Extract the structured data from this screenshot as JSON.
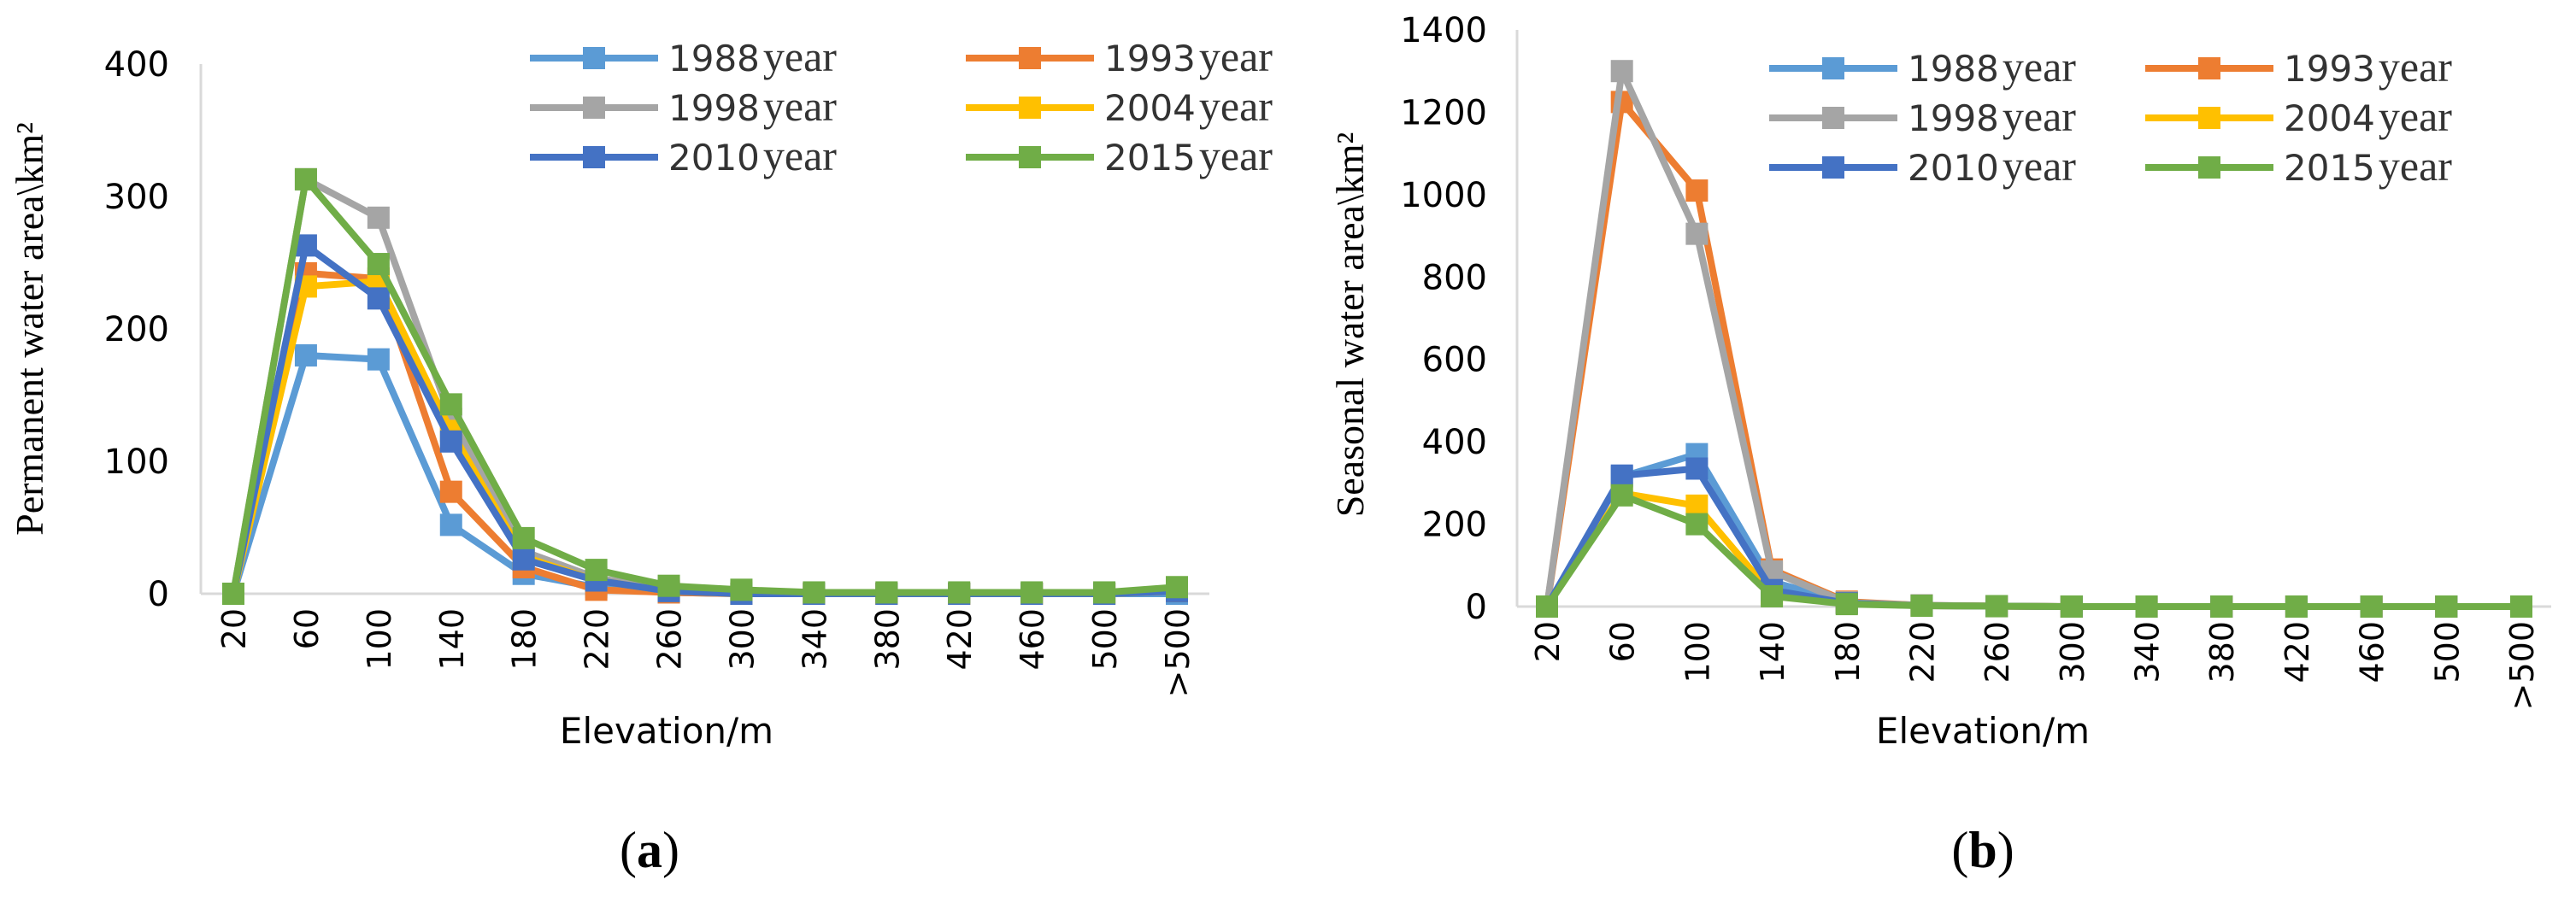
{
  "figure": {
    "panels": [
      {
        "label_open": "(",
        "label_letter": "a",
        "label_close": ")"
      },
      {
        "label_open": "(",
        "label_letter": "b",
        "label_close": ")"
      }
    ]
  },
  "chart_data": [
    {
      "type": "line",
      "panel": "a",
      "title": "",
      "xlabel": "Elevation/m",
      "ylabel": "Permanent water area\\km²",
      "categories": [
        "20",
        "60",
        "100",
        "140",
        "180",
        "220",
        "260",
        "300",
        "340",
        "380",
        "420",
        "460",
        "500",
        ">500"
      ],
      "ylim": [
        0,
        400
      ],
      "yticks": [
        0,
        100,
        200,
        300,
        400
      ],
      "grid": false,
      "legend_position": "top-right",
      "series": [
        {
          "name": "1988",
          "suffix": "year",
          "color": "#5B9BD5",
          "values": [
            0,
            180,
            177,
            52,
            15,
            5,
            1,
            0,
            0,
            0,
            0,
            0,
            0,
            0
          ]
        },
        {
          "name": "1993",
          "suffix": "year",
          "color": "#ED7D31",
          "values": [
            0,
            242,
            238,
            77,
            20,
            3,
            1,
            0,
            0,
            0,
            0,
            0,
            0,
            2
          ]
        },
        {
          "name": "1998",
          "suffix": "year",
          "color": "#A5A5A5",
          "values": [
            0,
            313,
            284,
            132,
            32,
            12,
            3,
            1,
            0,
            0,
            0,
            0,
            0,
            3
          ]
        },
        {
          "name": "2004",
          "suffix": "year",
          "color": "#FFC000",
          "values": [
            0,
            232,
            236,
            123,
            28,
            10,
            2,
            0,
            0,
            0,
            0,
            0,
            0,
            2
          ]
        },
        {
          "name": "2010",
          "suffix": "year",
          "color": "#4472C4",
          "values": [
            0,
            263,
            223,
            115,
            26,
            10,
            2,
            0,
            0,
            0,
            0,
            0,
            0,
            2
          ]
        },
        {
          "name": "2015",
          "suffix": "year",
          "color": "#70AD47",
          "values": [
            0,
            313,
            249,
            143,
            42,
            18,
            6,
            3,
            1,
            1,
            1,
            1,
            1,
            5
          ]
        }
      ]
    },
    {
      "type": "line",
      "panel": "b",
      "title": "",
      "xlabel": "Elevation/m",
      "ylabel": "Seasonal water area\\km²",
      "categories": [
        "20",
        "60",
        "100",
        "140",
        "180",
        "220",
        "260",
        "300",
        "340",
        "380",
        "420",
        "460",
        "500",
        ">500"
      ],
      "ylim": [
        0,
        1400
      ],
      "yticks": [
        0,
        200,
        400,
        600,
        800,
        1000,
        1200,
        1400
      ],
      "grid": false,
      "legend_position": "top-right",
      "series": [
        {
          "name": "1988",
          "suffix": "year",
          "color": "#5B9BD5",
          "values": [
            0,
            315,
            370,
            60,
            10,
            3,
            1,
            0,
            0,
            0,
            0,
            0,
            0,
            0
          ]
        },
        {
          "name": "1993",
          "suffix": "year",
          "color": "#ED7D31",
          "values": [
            0,
            1225,
            1010,
            90,
            12,
            3,
            1,
            0,
            0,
            0,
            0,
            0,
            0,
            0
          ]
        },
        {
          "name": "1998",
          "suffix": "year",
          "color": "#A5A5A5",
          "values": [
            0,
            1300,
            905,
            85,
            10,
            3,
            1,
            0,
            0,
            0,
            0,
            0,
            0,
            0
          ]
        },
        {
          "name": "2004",
          "suffix": "year",
          "color": "#FFC000",
          "values": [
            0,
            275,
            245,
            30,
            8,
            2,
            1,
            0,
            0,
            0,
            0,
            0,
            0,
            0
          ]
        },
        {
          "name": "2010",
          "suffix": "year",
          "color": "#4472C4",
          "values": [
            0,
            318,
            335,
            40,
            8,
            2,
            1,
            0,
            0,
            0,
            0,
            0,
            0,
            0
          ]
        },
        {
          "name": "2015",
          "suffix": "year",
          "color": "#70AD47",
          "values": [
            0,
            270,
            200,
            25,
            6,
            2,
            1,
            0,
            0,
            0,
            0,
            0,
            0,
            0
          ]
        }
      ]
    }
  ]
}
